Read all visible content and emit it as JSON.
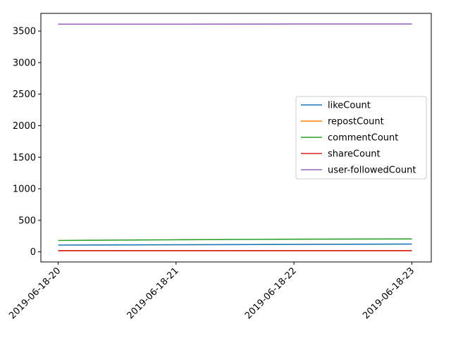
{
  "chart_data": {
    "type": "line",
    "title": "",
    "xlabel": "",
    "ylabel": "",
    "x": [
      "2019-06-18-20",
      "2019-06-18-21",
      "2019-06-18-22",
      "2019-06-18-23"
    ],
    "ylim": [
      -160,
      3780
    ],
    "yticks": [
      0,
      500,
      1000,
      1500,
      2000,
      2500,
      3000,
      3500
    ],
    "grid": false,
    "legend_position": "center-right",
    "series": [
      {
        "name": "likeCount",
        "color": "#1f77b4",
        "values": [
          108,
          112,
          118,
          124
        ]
      },
      {
        "name": "repostCount",
        "color": "#ff7f0e",
        "values": [
          18,
          18,
          18,
          18
        ]
      },
      {
        "name": "commentCount",
        "color": "#2ca02c",
        "values": [
          180,
          192,
          200,
          205
        ]
      },
      {
        "name": "shareCount",
        "color": "#d62728",
        "values": [
          20,
          20,
          20,
          20
        ]
      },
      {
        "name": "user-followedCount",
        "color": "#9467bd",
        "values": [
          3609,
          3609,
          3611,
          3612
        ]
      }
    ]
  }
}
